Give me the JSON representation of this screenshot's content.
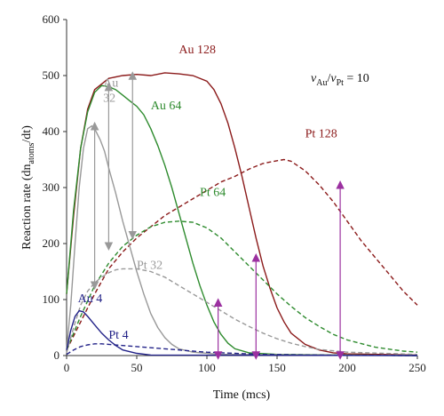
{
  "chart_data": {
    "type": "line",
    "title": "",
    "xlabel": "Time (mcs)",
    "ylabel": "Reaction rate (dn",
    "ylabel_sub": "atoms",
    "ylabel_suffix": "/dt)",
    "xlim": [
      0,
      250
    ],
    "ylim": [
      0,
      600
    ],
    "x_ticks": [
      0,
      50,
      100,
      150,
      200,
      250
    ],
    "y_ticks": [
      0,
      100,
      200,
      300,
      400,
      500,
      600
    ],
    "grid": false,
    "annotation": {
      "v1": "v",
      "s1": "Au",
      "sep": "/",
      "v2": "v",
      "s2": "Pt",
      "rhs": " = 10"
    },
    "series": [
      {
        "name": "Au 128",
        "color": "#8b1a1a",
        "dash": false,
        "label_x": 80,
        "label_y": 540,
        "points": [
          [
            0,
            110
          ],
          [
            5,
            250
          ],
          [
            10,
            370
          ],
          [
            15,
            440
          ],
          [
            20,
            475
          ],
          [
            30,
            495
          ],
          [
            40,
            500
          ],
          [
            50,
            502
          ],
          [
            60,
            500
          ],
          [
            70,
            505
          ],
          [
            80,
            503
          ],
          [
            90,
            500
          ],
          [
            100,
            490
          ],
          [
            105,
            475
          ],
          [
            110,
            450
          ],
          [
            115,
            415
          ],
          [
            120,
            370
          ],
          [
            125,
            320
          ],
          [
            130,
            265
          ],
          [
            135,
            210
          ],
          [
            140,
            160
          ],
          [
            145,
            120
          ],
          [
            150,
            85
          ],
          [
            155,
            60
          ],
          [
            160,
            40
          ],
          [
            170,
            20
          ],
          [
            180,
            10
          ],
          [
            190,
            5
          ],
          [
            200,
            3
          ],
          [
            250,
            1
          ]
        ]
      },
      {
        "name": "Pt 128",
        "color": "#8b1a1a",
        "dash": true,
        "label_x": 170,
        "label_y": 390,
        "points": [
          [
            0,
            10
          ],
          [
            10,
            60
          ],
          [
            20,
            110
          ],
          [
            30,
            155
          ],
          [
            40,
            185
          ],
          [
            50,
            210
          ],
          [
            60,
            230
          ],
          [
            70,
            250
          ],
          [
            80,
            265
          ],
          [
            90,
            280
          ],
          [
            100,
            295
          ],
          [
            110,
            310
          ],
          [
            120,
            320
          ],
          [
            130,
            333
          ],
          [
            140,
            343
          ],
          [
            150,
            348
          ],
          [
            155,
            350
          ],
          [
            160,
            347
          ],
          [
            170,
            330
          ],
          [
            180,
            305
          ],
          [
            190,
            275
          ],
          [
            200,
            240
          ],
          [
            210,
            205
          ],
          [
            220,
            175
          ],
          [
            230,
            145
          ],
          [
            240,
            115
          ],
          [
            250,
            90
          ]
        ]
      },
      {
        "name": "Au 64",
        "color": "#2e8b2e",
        "dash": false,
        "label_x": 60,
        "label_y": 440,
        "points": [
          [
            0,
            110
          ],
          [
            5,
            260
          ],
          [
            10,
            370
          ],
          [
            15,
            435
          ],
          [
            20,
            470
          ],
          [
            25,
            482
          ],
          [
            30,
            480
          ],
          [
            35,
            475
          ],
          [
            40,
            465
          ],
          [
            45,
            455
          ],
          [
            50,
            445
          ],
          [
            55,
            430
          ],
          [
            60,
            405
          ],
          [
            65,
            375
          ],
          [
            70,
            340
          ],
          [
            75,
            300
          ],
          [
            80,
            255
          ],
          [
            85,
            210
          ],
          [
            90,
            165
          ],
          [
            95,
            125
          ],
          [
            100,
            90
          ],
          [
            105,
            60
          ],
          [
            110,
            38
          ],
          [
            115,
            22
          ],
          [
            120,
            12
          ],
          [
            130,
            5
          ],
          [
            150,
            2
          ],
          [
            250,
            0
          ]
        ]
      },
      {
        "name": "Pt 64",
        "color": "#2e8b2e",
        "dash": true,
        "label_x": 95,
        "label_y": 285,
        "points": [
          [
            0,
            10
          ],
          [
            10,
            70
          ],
          [
            20,
            125
          ],
          [
            30,
            165
          ],
          [
            40,
            195
          ],
          [
            50,
            215
          ],
          [
            60,
            230
          ],
          [
            70,
            238
          ],
          [
            80,
            240
          ],
          [
            90,
            238
          ],
          [
            100,
            228
          ],
          [
            110,
            210
          ],
          [
            120,
            185
          ],
          [
            130,
            160
          ],
          [
            140,
            135
          ],
          [
            150,
            110
          ],
          [
            160,
            88
          ],
          [
            170,
            68
          ],
          [
            180,
            52
          ],
          [
            190,
            38
          ],
          [
            200,
            28
          ],
          [
            220,
            15
          ],
          [
            240,
            8
          ],
          [
            250,
            6
          ]
        ]
      },
      {
        "name": "Au\n32",
        "label_line1": "Au",
        "label_line2": "32",
        "color": "#999999",
        "dash": false,
        "label_x": 26,
        "label_y": 480,
        "points": [
          [
            0,
            10
          ],
          [
            3,
            90
          ],
          [
            6,
            200
          ],
          [
            9,
            300
          ],
          [
            12,
            370
          ],
          [
            15,
            405
          ],
          [
            18,
            410
          ],
          [
            21,
            400
          ],
          [
            24,
            385
          ],
          [
            27,
            365
          ],
          [
            30,
            335
          ],
          [
            35,
            290
          ],
          [
            40,
            240
          ],
          [
            45,
            195
          ],
          [
            50,
            150
          ],
          [
            55,
            110
          ],
          [
            60,
            75
          ],
          [
            65,
            50
          ],
          [
            70,
            32
          ],
          [
            75,
            20
          ],
          [
            80,
            12
          ],
          [
            90,
            6
          ],
          [
            110,
            2
          ],
          [
            250,
            0
          ]
        ]
      },
      {
        "name": "Pt 32",
        "color": "#999999",
        "dash": true,
        "label_x": 50,
        "label_y": 155,
        "points": [
          [
            0,
            5
          ],
          [
            5,
            50
          ],
          [
            10,
            90
          ],
          [
            15,
            115
          ],
          [
            20,
            130
          ],
          [
            25,
            140
          ],
          [
            30,
            148
          ],
          [
            35,
            153
          ],
          [
            40,
            155
          ],
          [
            50,
            155
          ],
          [
            60,
            150
          ],
          [
            70,
            140
          ],
          [
            80,
            125
          ],
          [
            90,
            110
          ],
          [
            100,
            95
          ],
          [
            110,
            80
          ],
          [
            120,
            65
          ],
          [
            130,
            52
          ],
          [
            140,
            40
          ],
          [
            150,
            30
          ],
          [
            160,
            22
          ],
          [
            170,
            16
          ],
          [
            180,
            11
          ],
          [
            200,
            6
          ],
          [
            250,
            2
          ]
        ]
      },
      {
        "name": "Au 4",
        "color": "#222288",
        "dash": false,
        "label_x": 8,
        "label_y": 95,
        "points": [
          [
            0,
            10
          ],
          [
            3,
            45
          ],
          [
            6,
            70
          ],
          [
            9,
            80
          ],
          [
            12,
            78
          ],
          [
            15,
            70
          ],
          [
            20,
            55
          ],
          [
            25,
            40
          ],
          [
            30,
            28
          ],
          [
            35,
            18
          ],
          [
            40,
            10
          ],
          [
            50,
            4
          ],
          [
            60,
            1
          ],
          [
            250,
            0
          ]
        ]
      },
      {
        "name": "Pt 4",
        "color": "#222288",
        "dash": true,
        "label_x": 30,
        "label_y": 30,
        "points": [
          [
            0,
            2
          ],
          [
            5,
            10
          ],
          [
            10,
            16
          ],
          [
            15,
            19
          ],
          [
            20,
            21
          ],
          [
            25,
            21
          ],
          [
            30,
            20
          ],
          [
            40,
            18
          ],
          [
            50,
            16
          ],
          [
            60,
            14
          ],
          [
            70,
            12
          ],
          [
            80,
            10
          ],
          [
            90,
            8
          ],
          [
            100,
            6
          ],
          [
            120,
            4
          ],
          [
            140,
            2
          ],
          [
            170,
            1
          ],
          [
            250,
            0
          ]
        ]
      }
    ],
    "arrows": [
      {
        "color": "#999999",
        "x": 20,
        "from": 410,
        "to": 125
      },
      {
        "color": "#999999",
        "x": 30,
        "from": 480,
        "to": 195
      },
      {
        "color": "#999999",
        "x": 47,
        "from": 500,
        "to": 215
      },
      {
        "color": "#9b30a0",
        "x": 108,
        "from": 0,
        "to": 95
      },
      {
        "color": "#9b30a0",
        "x": 135,
        "from": 0,
        "to": 175
      },
      {
        "color": "#9b30a0",
        "x": 195,
        "from": 0,
        "to": 305
      }
    ]
  }
}
